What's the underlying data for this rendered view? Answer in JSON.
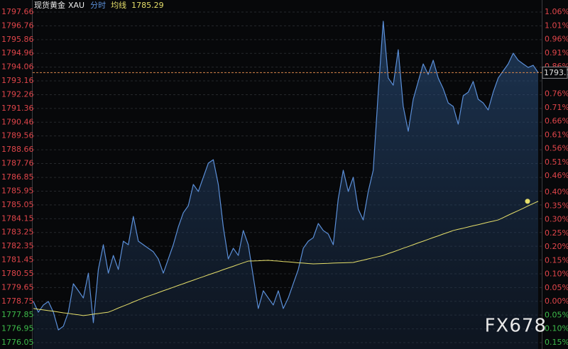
{
  "chart_data": {
    "type": "line",
    "title": "现货黄金",
    "symbol": "XAU",
    "series": [
      {
        "name": "分时",
        "color": "#5b8fd8",
        "values": [
          1778.74,
          1778.04,
          1778.51,
          1778.74,
          1778.04,
          1776.88,
          1777.12,
          1778.04,
          1779.9,
          1779.44,
          1778.97,
          1780.59,
          1777.35,
          1780.83,
          1782.45,
          1780.59,
          1781.75,
          1780.83,
          1782.68,
          1782.45,
          1784.3,
          1782.68,
          1782.45,
          1782.22,
          1781.99,
          1781.52,
          1780.59,
          1781.52,
          1782.45,
          1783.61,
          1784.54,
          1785.0,
          1786.39,
          1785.93,
          1786.86,
          1787.78,
          1788.01,
          1786.39,
          1783.61,
          1781.52,
          1782.22,
          1781.75,
          1783.38,
          1782.45,
          1780.36,
          1778.28,
          1779.44,
          1778.97,
          1778.51,
          1779.44,
          1778.28,
          1778.97,
          1779.9,
          1780.83,
          1782.22,
          1782.68,
          1782.91,
          1783.84,
          1783.38,
          1783.15,
          1782.45,
          1785.46,
          1787.32,
          1785.93,
          1786.86,
          1784.77,
          1784.07,
          1785.93,
          1787.32,
          1792.42,
          1797.06,
          1793.35,
          1792.88,
          1795.2,
          1791.49,
          1789.87,
          1791.96,
          1793.12,
          1794.27,
          1793.58,
          1794.51,
          1793.35,
          1792.65,
          1791.72,
          1791.49,
          1790.33,
          1792.19,
          1792.42,
          1793.12,
          1791.96,
          1791.72,
          1791.26,
          1792.42,
          1793.35,
          1793.81,
          1794.27,
          1794.97,
          1794.51,
          1794.27,
          1794.04,
          1794.18,
          1793.7
        ]
      },
      {
        "name": "均线",
        "color": "#e6df6a",
        "values": [
          1778.28,
          1778.23,
          1778.19,
          1778.14,
          1778.1,
          1778.05,
          1778.0,
          1777.96,
          1777.91,
          1777.87,
          1777.82,
          1777.86,
          1777.91,
          1777.95,
          1778.0,
          1778.04,
          1778.17,
          1778.31,
          1778.44,
          1778.57,
          1778.71,
          1778.84,
          1778.97,
          1779.09,
          1779.2,
          1779.32,
          1779.44,
          1779.55,
          1779.67,
          1779.79,
          1779.9,
          1780.02,
          1780.13,
          1780.25,
          1780.36,
          1780.48,
          1780.59,
          1780.7,
          1780.82,
          1780.93,
          1781.04,
          1781.16,
          1781.27,
          1781.38,
          1781.39,
          1781.4,
          1781.42,
          1781.43,
          1781.4,
          1781.38,
          1781.35,
          1781.33,
          1781.3,
          1781.27,
          1781.25,
          1781.22,
          1781.2,
          1781.21,
          1781.22,
          1781.23,
          1781.25,
          1781.26,
          1781.27,
          1781.28,
          1781.29,
          1781.37,
          1781.44,
          1781.52,
          1781.6,
          1781.67,
          1781.75,
          1781.87,
          1781.98,
          1782.1,
          1782.22,
          1782.33,
          1782.45,
          1782.57,
          1782.68,
          1782.8,
          1782.92,
          1783.03,
          1783.15,
          1783.26,
          1783.38,
          1783.46,
          1783.53,
          1783.61,
          1783.69,
          1783.76,
          1783.84,
          1783.92,
          1783.99,
          1784.07,
          1784.22,
          1784.38,
          1784.53,
          1784.68,
          1784.83,
          1784.99,
          1785.14,
          1785.29
        ]
      }
    ],
    "ylim": [
      1776.05,
      1797.66
    ],
    "yticks": [
      1797.66,
      1796.76,
      1795.86,
      1794.96,
      1794.06,
      1793.16,
      1792.26,
      1791.36,
      1790.46,
      1789.56,
      1788.66,
      1787.76,
      1786.85,
      1785.95,
      1785.05,
      1784.15,
      1783.25,
      1782.35,
      1781.45,
      1780.55,
      1779.65,
      1778.75,
      1777.85,
      1776.95,
      1776.05
    ],
    "y2lim": [
      -0.15,
      1.06
    ],
    "y2ticks": [
      {
        "value": 1.06,
        "label": "1.06%"
      },
      {
        "value": 1.01,
        "label": "1.01%"
      },
      {
        "value": 0.96,
        "label": "0.96%"
      },
      {
        "value": 0.91,
        "label": "0.91%"
      },
      {
        "value": 0.86,
        "label": "0.86%"
      },
      {
        "value": 0.76,
        "label": "0.76%"
      },
      {
        "value": 0.71,
        "label": "0.71%"
      },
      {
        "value": 0.66,
        "label": "0.66%"
      },
      {
        "value": 0.61,
        "label": "0.61%"
      },
      {
        "value": 0.56,
        "label": "0.56%"
      },
      {
        "value": 0.51,
        "label": "0.51%"
      },
      {
        "value": 0.46,
        "label": "0.46%"
      },
      {
        "value": 0.4,
        "label": "0.40%"
      },
      {
        "value": 0.35,
        "label": "0.35%"
      },
      {
        "value": 0.3,
        "label": "0.30%"
      },
      {
        "value": 0.25,
        "label": "0.25%"
      },
      {
        "value": 0.2,
        "label": "0.20%"
      },
      {
        "value": 0.15,
        "label": "0.15%"
      },
      {
        "value": 0.1,
        "label": "0.10%"
      },
      {
        "value": 0.05,
        "label": "0.05%"
      },
      {
        "value": 0.0,
        "label": "0.00%"
      },
      {
        "value": -0.05,
        "label": "0.05%"
      },
      {
        "value": -0.1,
        "label": "0.10%"
      },
      {
        "value": -0.15,
        "label": "0.15%"
      }
    ],
    "grid": true,
    "watermark": "FX678"
  }
}
